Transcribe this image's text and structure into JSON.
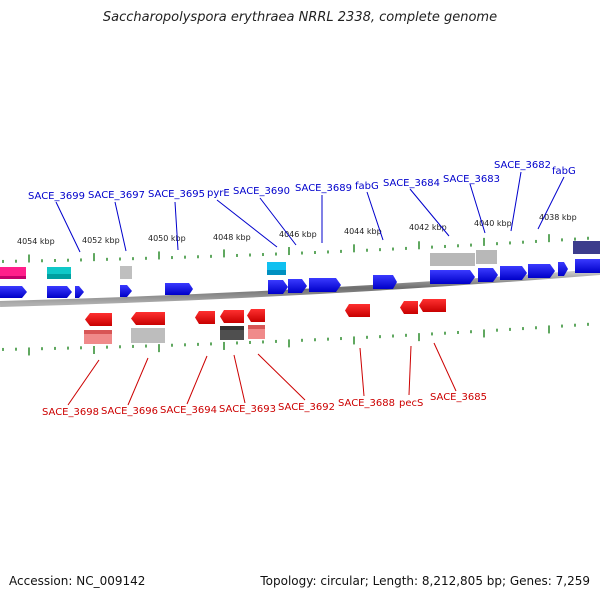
{
  "title": "Saccharopolyspora erythraea NRRL 2338, complete genome",
  "footer": {
    "accession": "Accession: NC_009142",
    "summary": "Topology: circular; Length: 8,212,805 bp; Genes: 7,259"
  },
  "colors": {
    "forward_gene": "#0000ee",
    "reverse_gene": "#ee0000",
    "forward_label": "#0000cc",
    "reverse_label": "#cc0000",
    "tick": "#2a8a2a",
    "backbone": "#7a7a7a"
  },
  "scale_labels": [
    "4054 kbp",
    "4052 kbp",
    "4050 kbp",
    "4048 kbp",
    "4046 kbp",
    "4044 kbp",
    "4042 kbp",
    "4040 kbp",
    "4038 kbp"
  ],
  "forward_labels": [
    "SACE_3699",
    "SACE_3697",
    "SACE_3695",
    "pyrE",
    "SACE_3690",
    "SACE_3689",
    "fabG",
    "SACE_3684",
    "SACE_3683",
    "SACE_3682",
    "fabG"
  ],
  "reverse_labels": [
    "SACE_3698",
    "SACE_3696",
    "SACE_3694",
    "SACE_3693",
    "SACE_3692",
    "SACE_3688",
    "pecS",
    "SACE_3685"
  ]
}
